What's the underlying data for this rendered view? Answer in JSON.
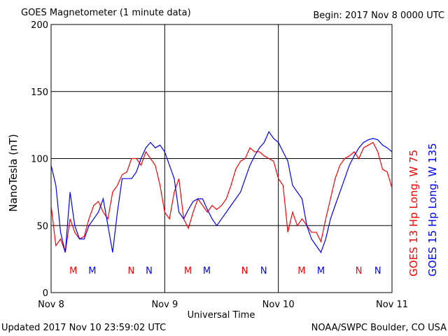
{
  "chart_data": {
    "type": "line",
    "title": "GOES Magnetometer (1 minute data)",
    "subtitle": "Begin:  2017 Nov 8 0000 UTC",
    "ylabel": "NanoTesla (nT)",
    "xlabel": "Universal Time",
    "footer_left": "Updated 2017 Nov 10 23:59:02 UTC",
    "footer_right": "NOAA/SWPC Boulder, CO USA",
    "ylim": [
      0,
      200
    ],
    "yticks": [
      0,
      50,
      100,
      150,
      200
    ],
    "xlim": [
      0,
      72
    ],
    "xticks": [
      {
        "value": 0,
        "label": "Nov 8"
      },
      {
        "value": 24,
        "label": "Nov 9"
      },
      {
        "value": 48,
        "label": "Nov 10"
      },
      {
        "value": 72,
        "label": "Nov 11"
      }
    ],
    "grid": true,
    "x": [
      0,
      1,
      2,
      3,
      4,
      5,
      6,
      7,
      8,
      9,
      10,
      11,
      12,
      13,
      14,
      15,
      16,
      17,
      18,
      19,
      20,
      21,
      22,
      23,
      24,
      25,
      26,
      27,
      28,
      29,
      30,
      31,
      32,
      33,
      34,
      35,
      36,
      37,
      38,
      39,
      40,
      41,
      42,
      43,
      44,
      45,
      46,
      47,
      48,
      49,
      50,
      51,
      52,
      53,
      54,
      55,
      56,
      57,
      58,
      59,
      60,
      61,
      62,
      63,
      64,
      65,
      66,
      67,
      68,
      69,
      70,
      71,
      72
    ],
    "series": [
      {
        "name": "GOES 13 Hp  Long. W 75",
        "color": "#ff0000",
        "values": [
          65,
          35,
          40,
          30,
          55,
          45,
          40,
          42,
          55,
          65,
          68,
          60,
          55,
          75,
          80,
          88,
          90,
          100,
          100,
          95,
          105,
          100,
          95,
          80,
          60,
          55,
          75,
          85,
          55,
          48,
          60,
          70,
          65,
          60,
          65,
          62,
          65,
          70,
          80,
          92,
          98,
          100,
          108,
          105,
          105,
          102,
          100,
          98,
          85,
          80,
          45,
          60,
          50,
          55,
          50,
          45,
          45,
          38,
          55,
          70,
          85,
          95,
          100,
          102,
          105,
          100,
          108,
          110,
          112,
          105,
          92,
          90,
          78
        ],
        "markers": [
          {
            "label": "M",
            "x": 4.7
          },
          {
            "label": "N",
            "x": 16.9
          },
          {
            "label": "M",
            "x": 28.9
          },
          {
            "label": "N",
            "x": 40.9
          },
          {
            "label": "M",
            "x": 52.9
          },
          {
            "label": "N",
            "x": 65
          }
        ]
      },
      {
        "name": "GOES 15 Hp  Long. W 135",
        "color": "#0000ff",
        "values": [
          95,
          80,
          45,
          30,
          75,
          50,
          40,
          40,
          50,
          55,
          60,
          70,
          50,
          30,
          60,
          85,
          85,
          85,
          90,
          100,
          108,
          112,
          108,
          110,
          105,
          95,
          85,
          60,
          55,
          62,
          68,
          70,
          70,
          62,
          55,
          50,
          55,
          60,
          65,
          70,
          75,
          85,
          95,
          102,
          108,
          112,
          120,
          115,
          112,
          105,
          98,
          80,
          75,
          70,
          50,
          40,
          35,
          30,
          40,
          55,
          65,
          75,
          85,
          95,
          102,
          108,
          112,
          114,
          115,
          114,
          110,
          108,
          105
        ],
        "markers": [
          {
            "label": "M",
            "x": 8.7
          },
          {
            "label": "N",
            "x": 20.7
          },
          {
            "label": "M",
            "x": 32.9
          },
          {
            "label": "N",
            "x": 44.9
          },
          {
            "label": "M",
            "x": 57
          },
          {
            "label": "N",
            "x": 69
          }
        ]
      }
    ]
  }
}
